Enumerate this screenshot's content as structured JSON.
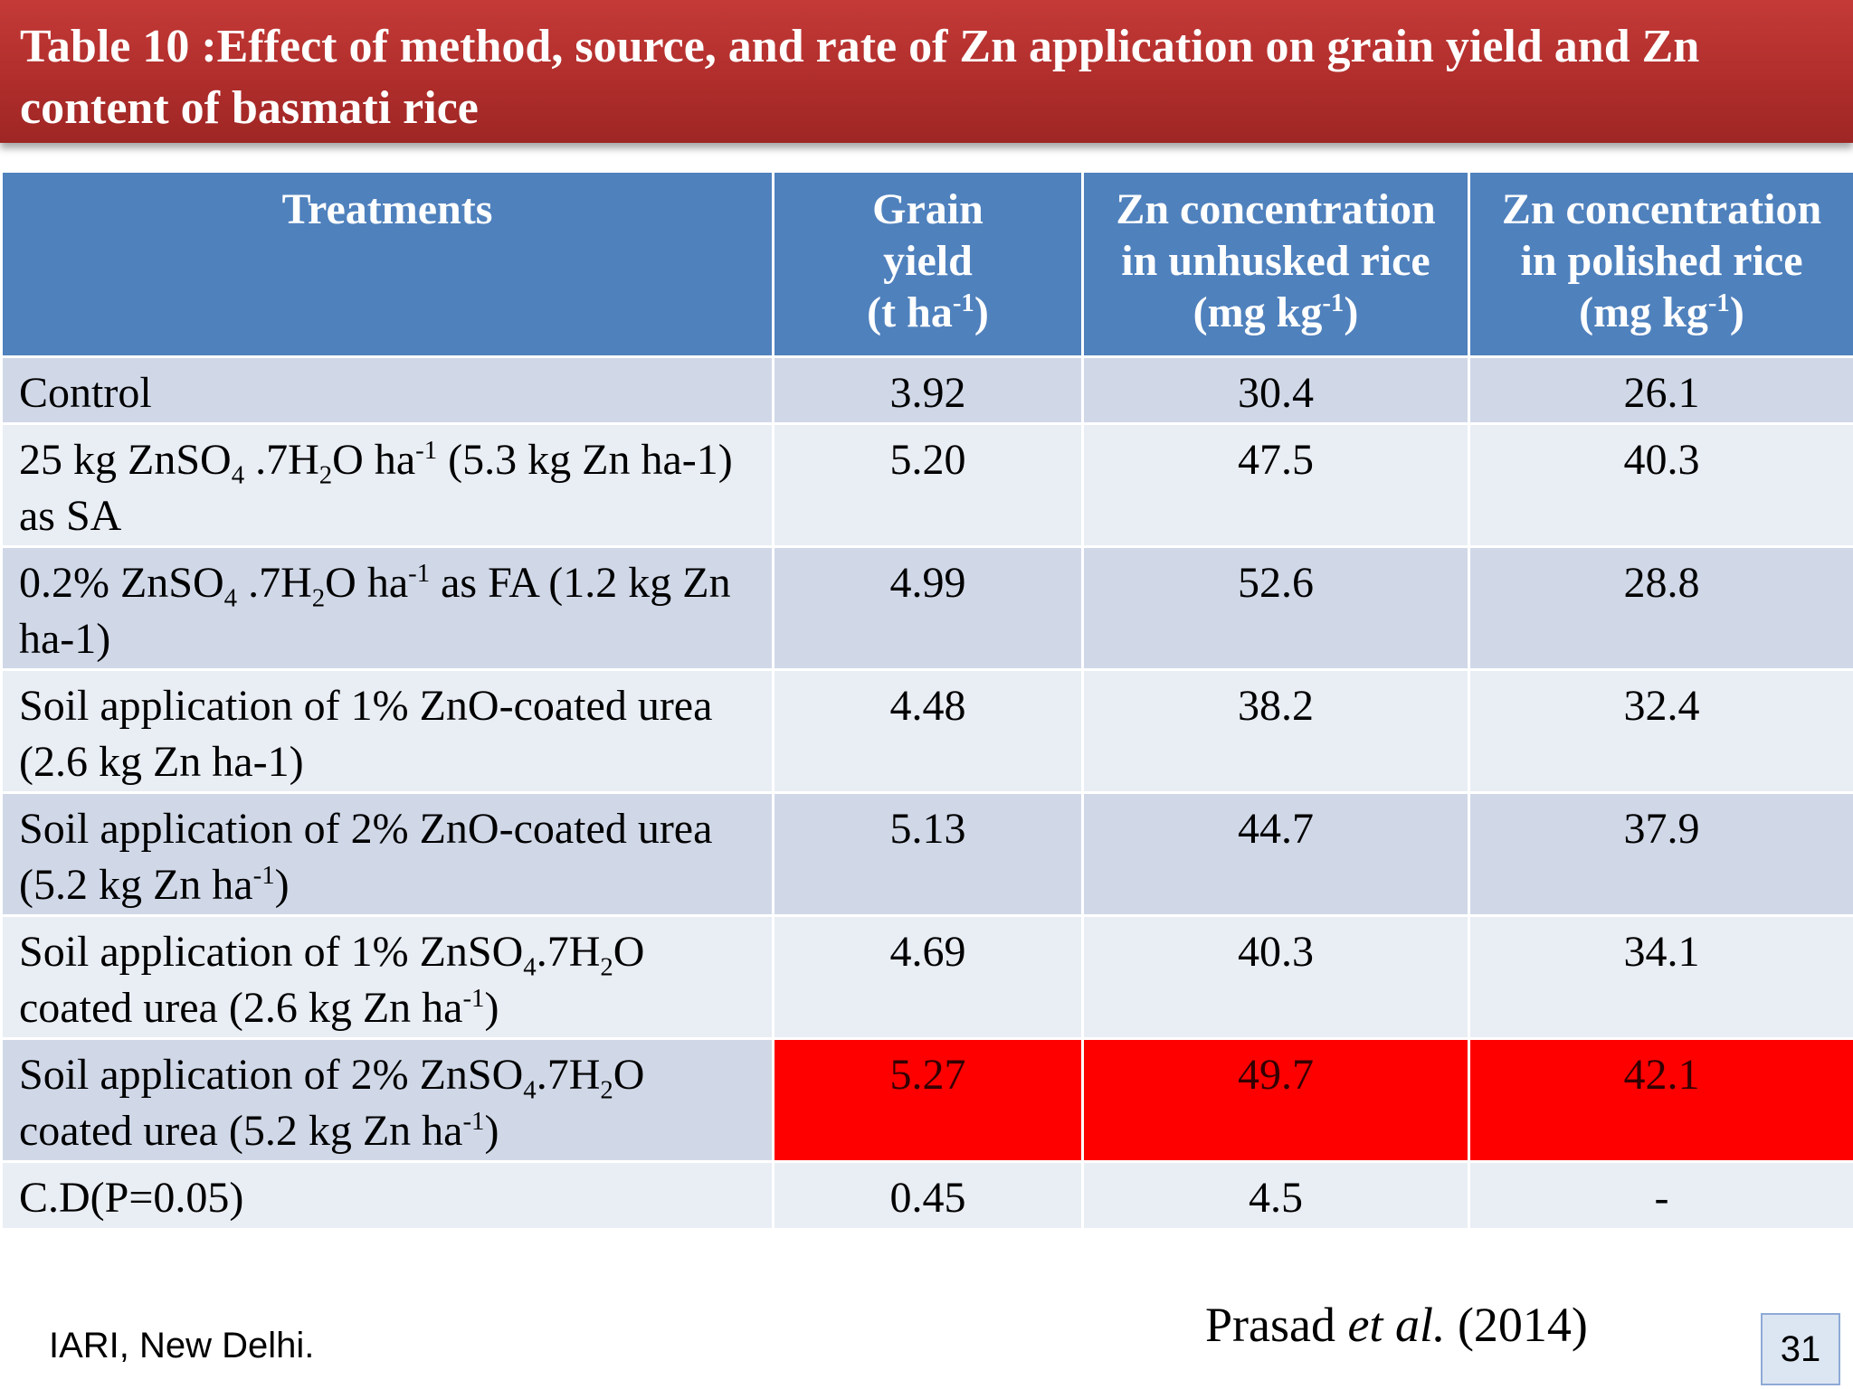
{
  "title": "Table 10 :Effect of method, source, and rate of Zn application on grain yield and Zn content of basmati rice",
  "columns": [
    {
      "line1": "Treatments",
      "line2": "",
      "unit_pre": "",
      "unit_sup": "",
      "unit_post": ""
    },
    {
      "line1": "Grain",
      "line2": "yield",
      "unit_pre": "(t ha",
      "unit_sup": "-1",
      "unit_post": ")"
    },
    {
      "line1": "Zn concentration",
      "line2": "in unhusked rice",
      "unit_pre": "(mg kg",
      "unit_sup": "-1",
      "unit_post": ")"
    },
    {
      "line1": "Zn concentration",
      "line2": "in polished rice",
      "unit_pre": "(mg kg",
      "unit_sup": "-1",
      "unit_post": ")"
    }
  ],
  "rows": [
    {
      "treatment": "Control",
      "values": [
        "3.92",
        "30.4",
        "26.1"
      ]
    },
    {
      "treatment": "25 kg ZnSO4 .7H2O ha-1 (5.3 kg Zn ha-1) as SA",
      "values": [
        "5.20",
        "47.5",
        "40.3"
      ]
    },
    {
      "treatment": "0.2% ZnSO4 .7H2O ha-1 as FA (1.2 kg Zn ha-1)",
      "values": [
        "4.99",
        "52.6",
        "28.8"
      ]
    },
    {
      "treatment": "Soil application of 1% ZnO-coated urea (2.6 kg Zn ha-1)",
      "values": [
        "4.48",
        "38.2",
        "32.4"
      ]
    },
    {
      "treatment": "Soil application of 2% ZnO-coated urea (5.2 kg Zn ha-1)",
      "values": [
        "5.13",
        "44.7",
        "37.9"
      ]
    },
    {
      "treatment": "Soil application of 1% ZnSO4.7H2O coated urea (2.6 kg Zn ha-1)",
      "values": [
        "4.69",
        "40.3",
        "34.1"
      ]
    },
    {
      "treatment": "Soil application of 2% ZnSO4.7H2O coated urea (5.2 kg Zn ha-1)",
      "values": [
        "5.27",
        "49.7",
        "42.1"
      ],
      "highlighted": true
    },
    {
      "treatment": "C.D(P=0.05)",
      "values": [
        "0.45",
        "4.5",
        "-"
      ]
    }
  ],
  "treatment_parts": {
    "r1": {
      "a": "25 kg ZnSO",
      "b": "4",
      "c": " .7H",
      "d": "2",
      "e": "O ha",
      "f": "-1",
      "g": " (5.3 kg Zn ha-1)  as SA"
    },
    "r2": {
      "a": "0.2% ZnSO",
      "b": "4",
      "c": " .7H",
      "d": "2",
      "e": "O ha",
      "f": "-1",
      "g": " as FA (1.2 kg Zn ha-1)"
    },
    "r4": {
      "a": "Soil application of 2% ZnO-coated urea (5.2 kg Zn ha",
      "b": "-1",
      "c": ")"
    },
    "r5": {
      "a": "Soil application of 1% ZnSO",
      "b": "4",
      "c": ".7H",
      "d": "2",
      "e": "O coated urea (2.6 kg Zn ha",
      "f": "-1",
      "g": ")"
    },
    "r6": {
      "a": "Soil application of 2% ZnSO",
      "b": "4",
      "c": ".7H",
      "d": "2",
      "e": "O coated urea (5.2 kg Zn ha",
      "f": "-1",
      "g": ")"
    }
  },
  "footer": {
    "institution": "IARI, New Delhi.",
    "citation_author": "Prasad ",
    "citation_etal": "et al.",
    "citation_year": " (2014)",
    "slide_number": "31"
  },
  "colors": {
    "title_bar": "#b02e2c",
    "header": "#4f81bd",
    "band_dark": "#d0d8e8",
    "band_light": "#e9edf4",
    "highlight": "#ff0000"
  }
}
